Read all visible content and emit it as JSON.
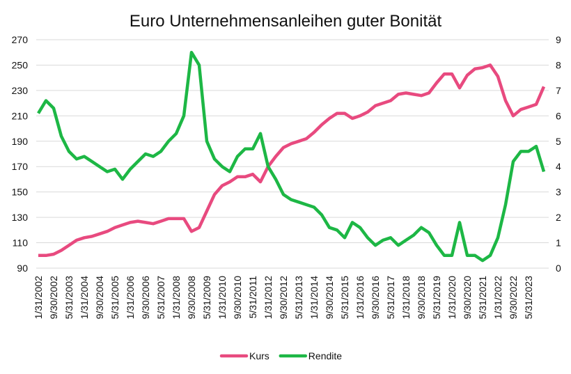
{
  "chart_data": {
    "type": "line",
    "title": "Euro Unternehmensanleihen guter Bonität",
    "categories": [
      "1/31/2002",
      null,
      "9/30/2002",
      null,
      "5/31/2003",
      null,
      "1/31/2004",
      null,
      "9/30/2004",
      null,
      "5/31/2005",
      null,
      "1/31/2006",
      null,
      "9/30/2006",
      null,
      "5/31/2007",
      null,
      "1/31/2008",
      null,
      "9/30/2008",
      null,
      "5/31/2009",
      null,
      "1/31/2010",
      null,
      "9/30/2010",
      null,
      "5/31/2011",
      null,
      "1/31/2012",
      null,
      "9/30/2012",
      null,
      "5/31/2013",
      null,
      "1/31/2014",
      null,
      "9/30/2014",
      null,
      "5/31/2015",
      null,
      "1/31/2016",
      null,
      "9/30/2016",
      null,
      "5/31/2017",
      null,
      "1/31/2018",
      null,
      "9/30/2018",
      null,
      "5/31/2019",
      null,
      "1/31/2020",
      null,
      "9/30/2020",
      null,
      "5/31/2021",
      null,
      "1/31/2022",
      null,
      "9/30/2022",
      null,
      "5/31/2023",
      null,
      null
    ],
    "series": [
      {
        "name": "Kurs",
        "color": "#e84a7f",
        "axis": "y",
        "values": [
          100,
          100,
          101,
          104,
          108,
          112,
          114,
          115,
          117,
          119,
          122,
          124,
          126,
          127,
          126,
          125,
          127,
          129,
          129,
          129,
          119,
          122,
          135,
          148,
          155,
          158,
          162,
          162,
          164,
          158,
          170,
          178,
          185,
          188,
          190,
          192,
          197,
          203,
          208,
          212,
          212,
          208,
          210,
          213,
          218,
          220,
          222,
          227,
          228,
          227,
          226,
          228,
          236,
          243,
          243,
          232,
          242,
          247,
          248,
          250,
          241,
          222,
          210,
          215,
          217,
          219,
          233
        ]
      },
      {
        "name": "Rendite",
        "color": "#1db745",
        "axis": "y2",
        "values": [
          6.1,
          6.6,
          6.3,
          5.2,
          4.6,
          4.3,
          4.4,
          4.2,
          4.0,
          3.8,
          3.9,
          3.5,
          3.9,
          4.2,
          4.5,
          4.4,
          4.6,
          5.0,
          5.3,
          6.0,
          8.5,
          8.0,
          5.0,
          4.3,
          4.0,
          3.8,
          4.4,
          4.7,
          4.7,
          5.3,
          4.0,
          3.5,
          2.9,
          2.7,
          2.6,
          2.5,
          2.4,
          2.1,
          1.6,
          1.5,
          1.2,
          1.8,
          1.6,
          1.2,
          0.9,
          1.1,
          1.2,
          0.9,
          1.1,
          1.3,
          1.6,
          1.4,
          0.9,
          0.5,
          0.5,
          1.8,
          0.5,
          0.5,
          0.3,
          0.5,
          1.2,
          2.5,
          4.2,
          4.6,
          4.6,
          4.8,
          3.8
        ]
      }
    ],
    "ylim": [
      90,
      270
    ],
    "yticks": [
      90,
      110,
      130,
      150,
      170,
      190,
      210,
      230,
      250,
      270
    ],
    "y2lim": [
      0,
      9
    ],
    "y2ticks": [
      0,
      1,
      2,
      3,
      4,
      5,
      6,
      7,
      8,
      9
    ],
    "grid": true,
    "legend": "bottom"
  }
}
